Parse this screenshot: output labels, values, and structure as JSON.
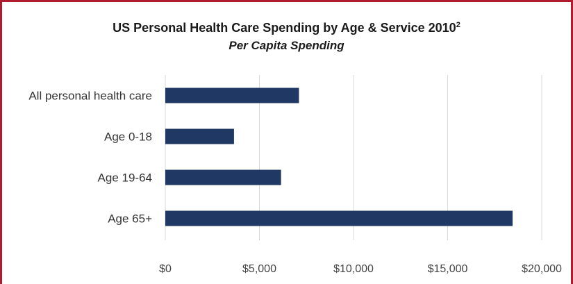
{
  "chart_data": {
    "type": "bar",
    "orientation": "horizontal",
    "title": "US Personal Health Care Spending by Age & Service 2010",
    "title_superscript": "2",
    "subtitle": "Per Capita Spending",
    "categories": [
      "All personal health care",
      "Age 0-18",
      "Age 19-64",
      "Age 65+"
    ],
    "values": [
      7100,
      3650,
      6150,
      18450
    ],
    "xlim": [
      0,
      20000
    ],
    "x_ticks": [
      0,
      5000,
      10000,
      15000,
      20000
    ],
    "x_tick_labels": [
      "$0",
      "$5,000",
      "$10,000",
      "$15,000",
      "$20,000"
    ],
    "grid": "vertical",
    "legend": "none",
    "bar_color": "#1f3864",
    "grid_color": "#d9d9d9",
    "border_color": "#b01c2e"
  }
}
